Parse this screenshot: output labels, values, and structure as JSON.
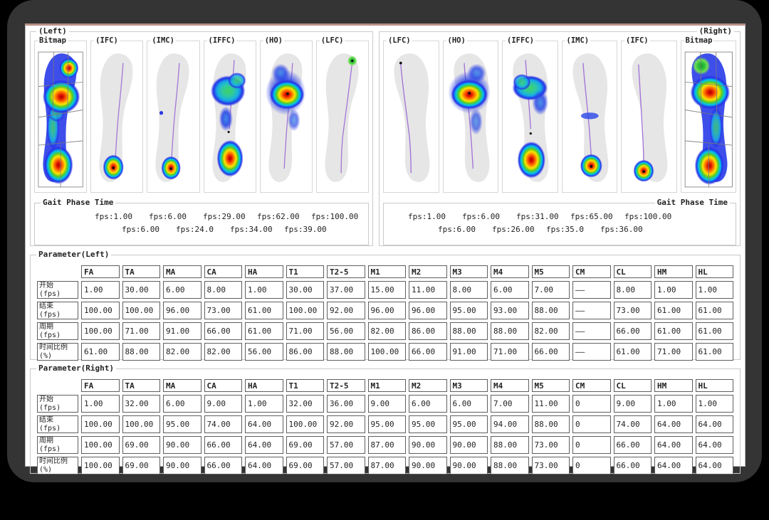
{
  "left": {
    "title": "(Left)",
    "columns": [
      {
        "label": "Bitmap",
        "viz": "bitmapL"
      },
      {
        "label": "(IFC)",
        "viz": "ifcL"
      },
      {
        "label": "(IMC)",
        "viz": "imcL"
      },
      {
        "label": "(IFFC)",
        "viz": "iffcL"
      },
      {
        "label": "(HO)",
        "viz": "hoL"
      },
      {
        "label": "(LFC)",
        "viz": "lfcL"
      }
    ],
    "gait": {
      "title": "Gait Phase Time",
      "row1": [
        "fps:1.00",
        "fps:6.00",
        "fps:29.00",
        "fps:62.00",
        "fps:100.00"
      ],
      "row2": [
        "fps:6.00",
        "fps:24.0",
        "fps:34.00",
        "fps:39.00"
      ]
    }
  },
  "right": {
    "title": "(Right)",
    "columns": [
      {
        "label": "(LFC)",
        "viz": "lfcR"
      },
      {
        "label": "(HO)",
        "viz": "hoR"
      },
      {
        "label": "(IFFC)",
        "viz": "iffcR"
      },
      {
        "label": "(IMC)",
        "viz": "imcR"
      },
      {
        "label": "(IFC)",
        "viz": "ifcR"
      },
      {
        "label": "Bitmap",
        "viz": "bitmapR"
      }
    ],
    "gait": {
      "title": "Gait Phase Time",
      "row1": [
        "fps:1.00",
        "fps:6.00",
        "fps:31.00",
        "fps:65.00",
        "fps:100.00"
      ],
      "row2": [
        "fps:6.00",
        "fps:26.00",
        "fps:35.0",
        "fps:36.00"
      ]
    }
  },
  "param_left": {
    "title": "Parameter(Left)",
    "headers": [
      "FA",
      "TA",
      "MA",
      "CA",
      "HA",
      "T1",
      "T2-5",
      "M1",
      "M2",
      "M3",
      "M4",
      "M5",
      "CM",
      "CL",
      "HM",
      "HL"
    ],
    "row_labels": [
      "开始\n(fps)",
      "结束\n(fps)",
      "周期\n(fps)",
      "时间比例\n(%)"
    ],
    "rows": [
      [
        "1.00",
        "30.00",
        "6.00",
        "8.00",
        "1.00",
        "30.00",
        "37.00",
        "15.00",
        "11.00",
        "8.00",
        "6.00",
        "7.00",
        "——",
        "8.00",
        "1.00",
        "1.00"
      ],
      [
        "100.00",
        "100.00",
        "96.00",
        "73.00",
        "61.00",
        "100.00",
        "92.00",
        "96.00",
        "96.00",
        "95.00",
        "93.00",
        "88.00",
        "——",
        "73.00",
        "61.00",
        "61.00"
      ],
      [
        "100.00",
        "71.00",
        "91.00",
        "66.00",
        "61.00",
        "71.00",
        "56.00",
        "82.00",
        "86.00",
        "88.00",
        "88.00",
        "82.00",
        "——",
        "66.00",
        "61.00",
        "61.00"
      ],
      [
        "61.00",
        "88.00",
        "82.00",
        "82.00",
        "56.00",
        "86.00",
        "88.00",
        "100.00",
        "66.00",
        "91.00",
        "71.00",
        "66.00",
        "——",
        "61.00",
        "71.00",
        "61.00"
      ]
    ]
  },
  "param_right": {
    "title": "Parameter(Right)",
    "headers": [
      "FA",
      "TA",
      "MA",
      "CA",
      "HA",
      "T1",
      "T2-5",
      "M1",
      "M2",
      "M3",
      "M4",
      "M5",
      "CM",
      "CL",
      "HM",
      "HL"
    ],
    "row_labels": [
      "开始\n(fps)",
      "结束\n(fps)",
      "周期\n(fps)",
      "时间比例\n(%)"
    ],
    "rows": [
      [
        "1.00",
        "32.00",
        "6.00",
        "9.00",
        "1.00",
        "32.00",
        "36.00",
        "9.00",
        "6.00",
        "6.00",
        "7.00",
        "11.00",
        "0",
        "9.00",
        "1.00",
        "1.00"
      ],
      [
        "100.00",
        "100.00",
        "95.00",
        "74.00",
        "64.00",
        "100.00",
        "92.00",
        "95.00",
        "95.00",
        "95.00",
        "94.00",
        "88.00",
        "0",
        "74.00",
        "64.00",
        "64.00"
      ],
      [
        "100.00",
        "69.00",
        "90.00",
        "66.00",
        "64.00",
        "69.00",
        "57.00",
        "87.00",
        "90.00",
        "90.00",
        "88.00",
        "73.00",
        "0",
        "66.00",
        "64.00",
        "64.00"
      ],
      [
        "100.00",
        "69.00",
        "90.00",
        "66.00",
        "64.00",
        "69.00",
        "57.00",
        "87.00",
        "90.00",
        "90.00",
        "88.00",
        "73.00",
        "0",
        "66.00",
        "64.00",
        "64.00"
      ]
    ]
  },
  "colors": {
    "frame": "#343434",
    "screen_top_line": "#b98f85",
    "groupbox_border": "#c9c9c9",
    "heat_red": "#a80000",
    "heat_orange": "#ff7b00",
    "heat_yellow": "#ffe400",
    "heat_green": "#57cb25",
    "heat_cyan": "#00c6ea",
    "heat_blue": "#2531e8",
    "cop_line": "#a273d6",
    "foot_silhouette": "#e6e6e6"
  }
}
